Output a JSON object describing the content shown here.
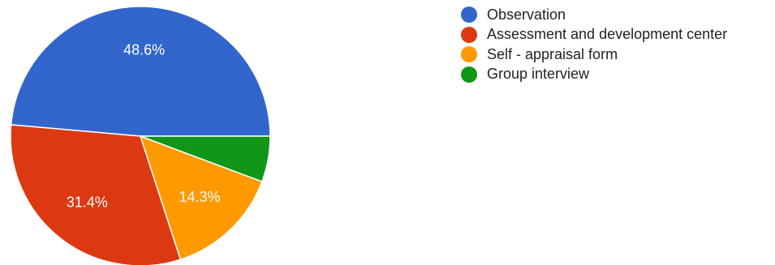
{
  "chart_data": {
    "type": "pie",
    "categories": [
      "Observation",
      "Assessment and development center",
      "Self - appraisal form",
      "Group interview"
    ],
    "values": [
      48.6,
      31.4,
      14.3,
      5.7
    ],
    "slice_labels": [
      "48.6%",
      "31.4%",
      "14.3%",
      ""
    ],
    "colors": [
      "#3366cc",
      "#dc3912",
      "#ff9900",
      "#109618"
    ],
    "legend_position": "right",
    "start": "3 o'clock, counterclockwise"
  }
}
